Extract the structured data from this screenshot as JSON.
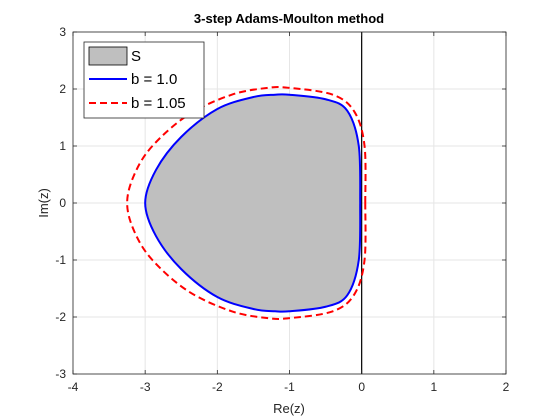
{
  "chart_data": {
    "type": "line",
    "title": "3-step Adams-Moulton method",
    "xlabel": "Re(z)",
    "ylabel": "Im(z)",
    "xlim": [
      -4,
      2
    ],
    "ylim": [
      -3,
      3
    ],
    "x_ticks": [
      "-4",
      "-3",
      "-2",
      "-1",
      "0",
      "1",
      "2"
    ],
    "y_ticks": [
      "-3",
      "-2",
      "-1",
      "0",
      "1",
      "2",
      "3"
    ],
    "grid": true,
    "legend_position": "top-left",
    "series": [
      {
        "name": "S",
        "kind": "filled-region",
        "fill": "#bfbfbf",
        "x": [
          0.0,
          -0.04,
          -0.2,
          -0.5,
          -1.0,
          -1.2,
          -1.5,
          -2.0,
          -2.5,
          -2.85,
          -3.0,
          -2.85,
          -2.5,
          -2.0,
          -1.5,
          -1.2,
          -1.0,
          -0.5,
          -0.2,
          -0.04,
          0.0
        ],
        "y": [
          0.0,
          1.0,
          1.62,
          1.82,
          1.9,
          1.9,
          1.86,
          1.65,
          1.16,
          0.58,
          0.0,
          -0.58,
          -1.16,
          -1.65,
          -1.86,
          -1.9,
          -1.9,
          -1.82,
          -1.62,
          -1.0,
          0.0
        ]
      },
      {
        "name": "b = 1.0",
        "kind": "line",
        "color": "#0000ff",
        "dash": "solid",
        "x": [
          -0.02,
          -0.04,
          -0.2,
          -0.5,
          -1.0,
          -1.2,
          -1.5,
          -2.0,
          -2.5,
          -2.85,
          -3.0,
          -2.85,
          -2.5,
          -2.0,
          -1.5,
          -1.2,
          -1.0,
          -0.5,
          -0.2,
          -0.04,
          -0.02
        ],
        "y": [
          0.0,
          1.0,
          1.62,
          1.82,
          1.9,
          1.9,
          1.86,
          1.65,
          1.16,
          0.58,
          0.0,
          -0.58,
          -1.16,
          -1.65,
          -1.86,
          -1.9,
          -1.9,
          -1.82,
          -1.62,
          -1.0,
          0.0
        ]
      },
      {
        "name": "b = 1.05",
        "kind": "line",
        "color": "#ff0000",
        "dash": "dashed",
        "x": [
          0.05,
          0.04,
          -0.1,
          -0.4,
          -1.0,
          -1.3,
          -1.8,
          -2.4,
          -2.9,
          -3.15,
          -3.25,
          -3.15,
          -2.9,
          -2.4,
          -1.8,
          -1.3,
          -1.0,
          -0.4,
          -0.1,
          0.04,
          0.05
        ],
        "y": [
          0.0,
          1.0,
          1.6,
          1.9,
          2.02,
          2.02,
          1.9,
          1.55,
          1.0,
          0.5,
          0.0,
          -0.5,
          -1.0,
          -1.55,
          -1.9,
          -2.02,
          -2.02,
          -1.9,
          -1.6,
          -1.0,
          0.0
        ]
      }
    ]
  }
}
